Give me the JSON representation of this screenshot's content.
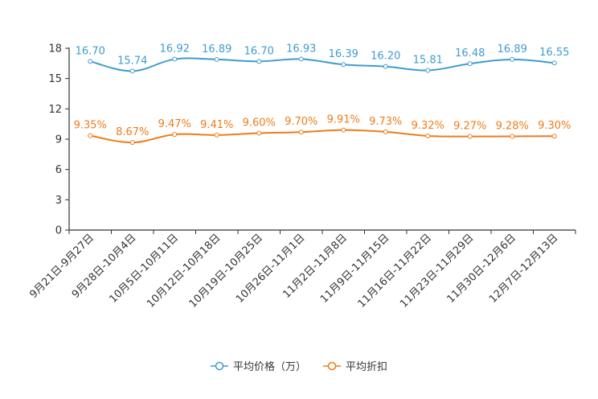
{
  "chart_data": {
    "type": "line",
    "categories": [
      "9月21日-9月27日",
      "9月28日-10月4日",
      "10月5日-10月11日",
      "10月12日-10月18日",
      "10月19日-10月25日",
      "10月26日-11月1日",
      "11月2日-11月8日",
      "11月9日-11月15日",
      "11月16日-11月22日",
      "11月23日-11月29日",
      "11月30日-12月6日",
      "12月7日-12月13日"
    ],
    "series": [
      {
        "name": "平均价格（万）",
        "color": "#3e9ccf",
        "values": [
          16.7,
          15.74,
          16.92,
          16.89,
          16.7,
          16.93,
          16.39,
          16.2,
          15.81,
          16.48,
          16.89,
          16.55
        ],
        "labels": [
          "16.70",
          "15.74",
          "16.92",
          "16.89",
          "16.70",
          "16.93",
          "16.39",
          "16.20",
          "15.81",
          "16.48",
          "16.89",
          "16.55"
        ]
      },
      {
        "name": "平均折扣",
        "color": "#f07b1a",
        "values": [
          9.35,
          8.67,
          9.47,
          9.41,
          9.6,
          9.7,
          9.91,
          9.73,
          9.32,
          9.27,
          9.28,
          9.3
        ],
        "labels": [
          "9.35%",
          "8.67%",
          "9.47%",
          "9.41%",
          "9.60%",
          "9.70%",
          "9.91%",
          "9.73%",
          "9.32%",
          "9.27%",
          "9.28%",
          "9.30%"
        ]
      }
    ],
    "yticks": [
      0,
      3,
      6,
      9,
      12,
      15,
      18
    ],
    "ylim": [
      0,
      18
    ],
    "legend_position": "bottom-center"
  }
}
